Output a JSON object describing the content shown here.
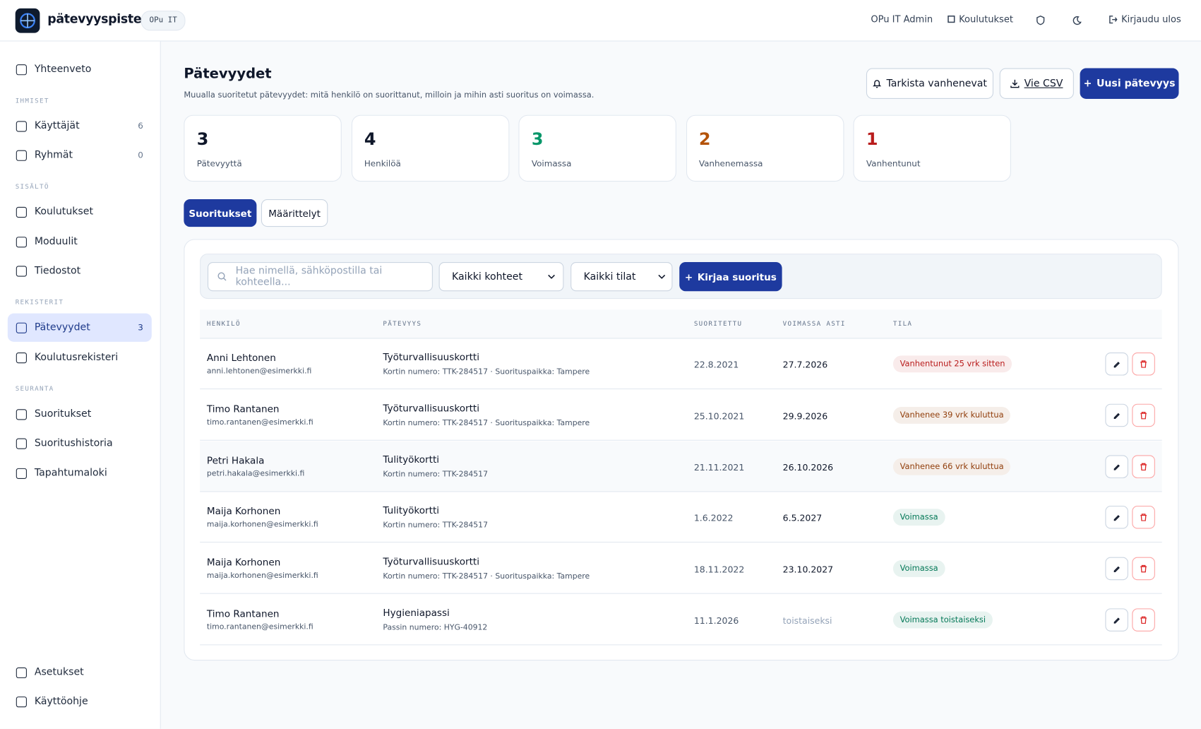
{
  "header": {
    "brand": "pätevyyspiste.fi",
    "org": "OPu IT",
    "user": "OPu IT Admin",
    "nav_link": "Koulutukset",
    "logout": "Kirjaudu ulos"
  },
  "sidebar": {
    "top": [
      {
        "label": "Yhteenveto"
      }
    ],
    "sections": [
      {
        "title": "IHMISET",
        "items": [
          {
            "label": "Käyttäjät",
            "count": 6
          },
          {
            "label": "Ryhmät",
            "count": 0
          }
        ]
      },
      {
        "title": "SISÄLTÖ",
        "items": [
          {
            "label": "Koulutukset"
          },
          {
            "label": "Moduulit"
          },
          {
            "label": "Tiedostot"
          }
        ]
      },
      {
        "title": "REKISTERIT",
        "items": [
          {
            "label": "Pätevyydet",
            "count": 3,
            "active": true
          },
          {
            "label": "Koulutusrekisteri"
          }
        ]
      },
      {
        "title": "SEURANTA",
        "items": [
          {
            "label": "Suoritukset"
          },
          {
            "label": "Suoritushistoria"
          },
          {
            "label": "Tapahtumaloki"
          }
        ]
      }
    ],
    "bottom": [
      {
        "label": "Asetukset"
      },
      {
        "label": "Käyttöohje"
      }
    ]
  },
  "page": {
    "title": "Pätevyydet",
    "subtitle": "Muualla suoritetut pätevyydet: mitä henkilö on suorittanut, milloin ja mihin asti suoritus on voimassa.",
    "actions": {
      "check": "Tarkista vanhenevat",
      "export": "Vie CSV",
      "new": "Uusi pätevyys"
    }
  },
  "stats": [
    {
      "value": 3,
      "label": "Pätevyyttä",
      "color": "#0f172a"
    },
    {
      "value": 4,
      "label": "Henkilöä",
      "color": "#0f172a"
    },
    {
      "value": 3,
      "label": "Voimassa",
      "color": "#059669"
    },
    {
      "value": 2,
      "label": "Vanhenemassa",
      "color": "#b45309"
    },
    {
      "value": 1,
      "label": "Vanhentunut",
      "color": "#b91c1c"
    }
  ],
  "tabs": [
    "Suoritukset",
    "Määrittelyt"
  ],
  "filters": {
    "search_placeholder": "Hae nimellä, sähköpostilla tai kohteella...",
    "target": "Kaikki kohteet",
    "status": "Kaikki tilat",
    "add": "Kirjaa suoritus"
  },
  "table": {
    "columns": [
      "HENKILÖ",
      "PÄTEVYYS",
      "SUORITETTU",
      "VOIMASSA ASTI",
      "TILA"
    ],
    "rows": [
      {
        "name": "Anni Lehtonen",
        "email": "anni.lehtonen@esimerkki.fi",
        "qualification": "Työturvallisuuskortti",
        "details": "Kortin numero: TTK-284517 · Suorituspaikka: Tampere",
        "completed": "22.8.2021",
        "valid_until": "27.7.2026",
        "status": "Vanhentunut 25 vrk sitten",
        "status_color": "#b91c1c"
      },
      {
        "name": "Timo Rantanen",
        "email": "timo.rantanen@esimerkki.fi",
        "qualification": "Työturvallisuuskortti",
        "details": "Kortin numero: TTK-284517 · Suorituspaikka: Tampere",
        "completed": "25.10.2021",
        "valid_until": "29.9.2026",
        "status": "Vanhenee 39 vrk kuluttua",
        "status_color": "#92400e"
      },
      {
        "name": "Petri Hakala",
        "email": "petri.hakala@esimerkki.fi",
        "qualification": "Tulityökortti",
        "details": "Kortin numero: TTK-284517",
        "completed": "21.11.2021",
        "valid_until": "26.10.2026",
        "status": "Vanhenee 66 vrk kuluttua",
        "status_color": "#92400e"
      },
      {
        "name": "Maija Korhonen",
        "email": "maija.korhonen@esimerkki.fi",
        "qualification": "Tulityökortti",
        "details": "Kortin numero: TTK-284517",
        "completed": "1.6.2022",
        "valid_until": "6.5.2027",
        "status": "Voimassa",
        "status_color": "#047857"
      },
      {
        "name": "Maija Korhonen",
        "email": "maija.korhonen@esimerkki.fi",
        "qualification": "Työturvallisuuskortti",
        "details": "Kortin numero: TTK-284517 · Suorituspaikka: Tampere",
        "completed": "18.11.2022",
        "valid_until": "23.10.2027",
        "status": "Voimassa",
        "status_color": "#047857"
      },
      {
        "name": "Timo Rantanen",
        "email": "timo.rantanen@esimerkki.fi",
        "qualification": "Hygieniapassi",
        "details": "Passin numero: HYG-40912",
        "completed": "11.1.2026",
        "valid_until": "toistaiseksi",
        "status": "Voimassa toistaiseksi",
        "status_color": "#047857"
      }
    ]
  }
}
